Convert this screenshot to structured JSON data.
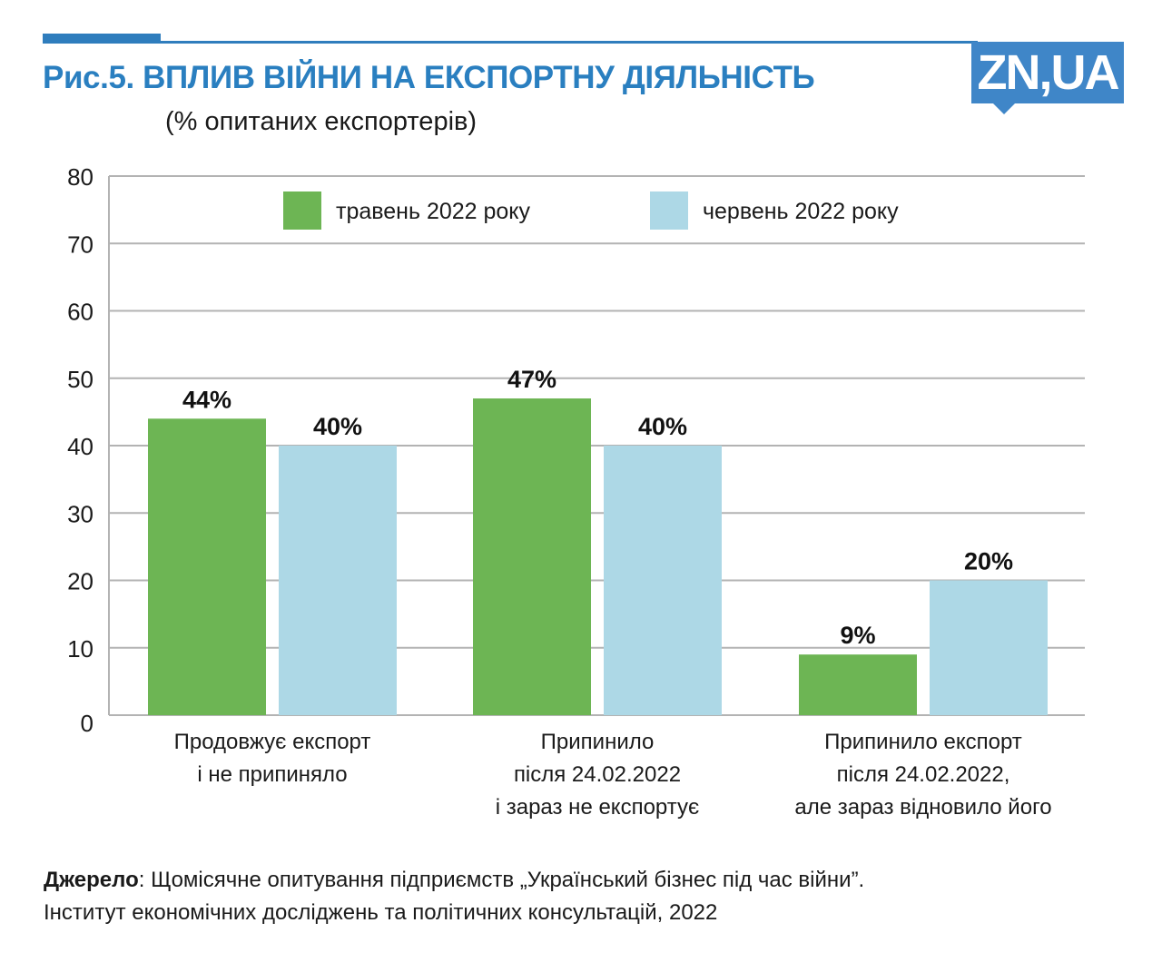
{
  "header": {
    "title": "Рис.5. ВПЛИВ ВІЙНИ НА ЕКСПОРТНУ ДІЯЛЬНІСТЬ",
    "subtitle": "(% опитаних експортерів)",
    "logo_text": "ZN,UA"
  },
  "colors": {
    "accent": "#2a7fc0",
    "logo": "#3f86c8",
    "series_may": "#6db554",
    "series_june": "#add8e6",
    "grid": "#b3b3b3"
  },
  "chart_data": {
    "type": "bar",
    "title": "Рис.5. ВПЛИВ ВІЙНИ НА ЕКСПОРТНУ ДІЯЛЬНІСТЬ",
    "subtitle": "(% опитаних експортерів)",
    "xlabel": "",
    "ylabel": "",
    "ylim": [
      0,
      80
    ],
    "yticks": [
      0,
      10,
      20,
      30,
      40,
      50,
      60,
      70,
      80
    ],
    "grid": true,
    "legend_position": "top",
    "categories": [
      [
        "Продовжує експорт",
        "і не припиняло"
      ],
      [
        "Припинило",
        "після 24.02.2022",
        "і зараз не експортує"
      ],
      [
        "Припинило експорт",
        "після 24.02.2022,",
        "але зараз відновило його"
      ]
    ],
    "series": [
      {
        "name": "травень 2022 року",
        "values": [
          44,
          47,
          9
        ],
        "labels": [
          "44%",
          "47%",
          "9%"
        ]
      },
      {
        "name": "червень 2022 року",
        "values": [
          40,
          40,
          20
        ],
        "labels": [
          "40%",
          "40%",
          "20%"
        ]
      }
    ]
  },
  "source": {
    "label": "Джерело",
    "line1": ": Щомісячне опитування підприємств „Український бізнес під час війни”.",
    "line2": "Інститут економічних досліджень та політичних консультацій, 2022"
  }
}
